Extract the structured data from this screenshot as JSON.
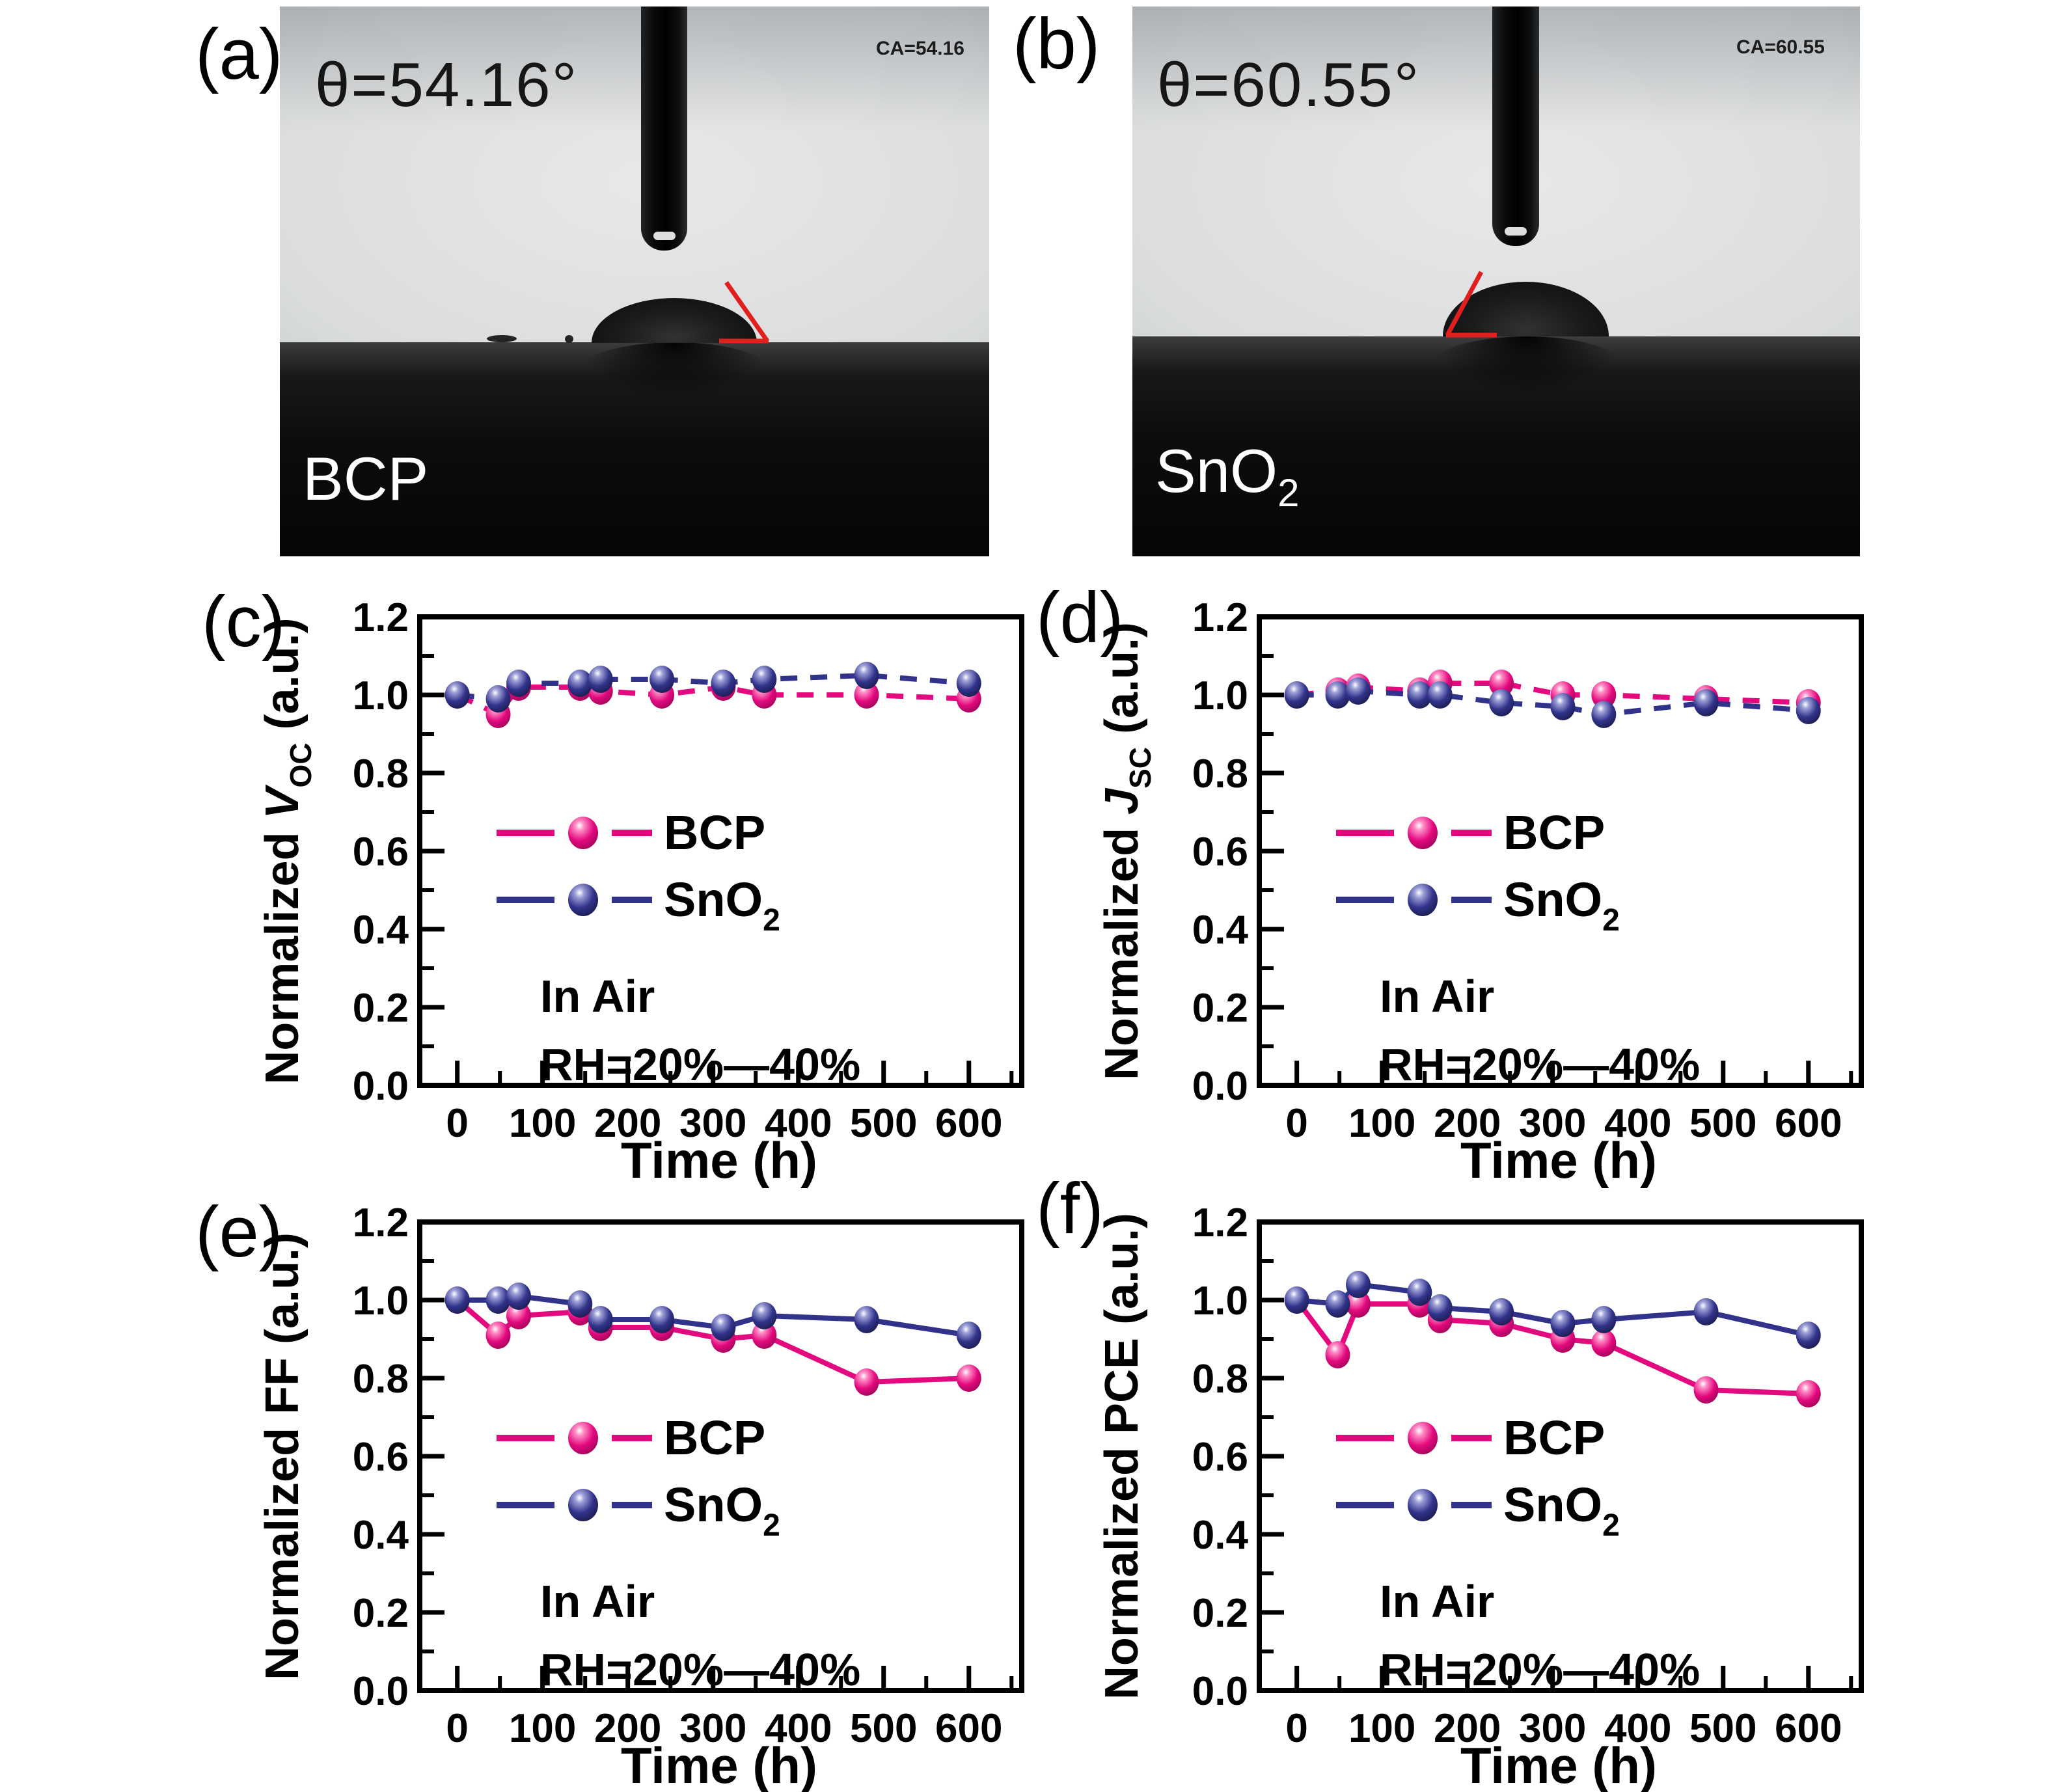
{
  "photos": {
    "a": {
      "panel_label": "(a)",
      "theta": "θ=54.16°",
      "ca": "CA=54.16",
      "sample": "BCP",
      "sample_sub": ""
    },
    "b": {
      "panel_label": "(b)",
      "theta": "θ=60.55°",
      "ca": "CA=60.55",
      "sample": "SnO",
      "sample_sub": "2"
    }
  },
  "chart_data": [
    {
      "type": "line",
      "panel_label": "(c)",
      "ylabel_parts": [
        {
          "t": "Normalized "
        },
        {
          "t": "V",
          "italic": true
        },
        {
          "t": "OC",
          "sub": true
        },
        {
          "t": " (a.u.)",
          "rise": true
        }
      ],
      "xlabel": "Time (h)",
      "x": [
        0,
        48,
        72,
        144,
        168,
        240,
        312,
        360,
        480,
        600
      ],
      "series": [
        {
          "name": "BCP",
          "label": "BCP",
          "label_sub": "",
          "color": "#e3097e",
          "light": "#ff8ac4",
          "dark": "#8f0350",
          "dashed": true,
          "values": [
            1.0,
            0.95,
            1.02,
            1.02,
            1.01,
            1.0,
            1.02,
            1.0,
            1.0,
            0.99
          ]
        },
        {
          "name": "SnO2",
          "label": "SnO",
          "label_sub": "2",
          "color": "#31338b",
          "light": "#9b9ed6",
          "dark": "#15163f",
          "dashed": true,
          "values": [
            1.0,
            0.99,
            1.03,
            1.03,
            1.04,
            1.04,
            1.03,
            1.04,
            1.05,
            1.03
          ]
        }
      ],
      "annotations": [
        "In Air",
        "RH=20%—40%"
      ],
      "xlim": [
        -44,
        662
      ],
      "ylim": [
        0,
        1.2
      ],
      "xticks": [
        0,
        100,
        200,
        300,
        400,
        500,
        600
      ],
      "yticks": [
        0,
        0.2,
        0.4,
        0.6,
        0.8,
        1.0,
        1.2
      ],
      "grid": false,
      "legend_position": "center"
    },
    {
      "type": "line",
      "panel_label": "(d)",
      "ylabel_parts": [
        {
          "t": "Normalized "
        },
        {
          "t": "J",
          "italic": true
        },
        {
          "t": "SC",
          "sub": true
        },
        {
          "t": " (a.u.)",
          "rise": true
        }
      ],
      "xlabel": "Time (h)",
      "x": [
        0,
        48,
        72,
        144,
        168,
        240,
        312,
        360,
        480,
        600
      ],
      "series": [
        {
          "name": "BCP",
          "label": "BCP",
          "label_sub": "",
          "color": "#e3097e",
          "light": "#ff8ac4",
          "dark": "#8f0350",
          "dashed": true,
          "values": [
            1.0,
            1.01,
            1.02,
            1.01,
            1.03,
            1.03,
            1.0,
            1.0,
            0.99,
            0.98
          ]
        },
        {
          "name": "SnO2",
          "label": "SnO",
          "label_sub": "2",
          "color": "#31338b",
          "light": "#9b9ed6",
          "dark": "#15163f",
          "dashed": true,
          "values": [
            1.0,
            1.0,
            1.01,
            1.0,
            1.0,
            0.98,
            0.97,
            0.95,
            0.98,
            0.96
          ]
        }
      ],
      "annotations": [
        "In Air",
        "RH=20%—40%"
      ],
      "xlim": [
        -44,
        662
      ],
      "ylim": [
        0,
        1.2
      ],
      "xticks": [
        0,
        100,
        200,
        300,
        400,
        500,
        600
      ],
      "yticks": [
        0,
        0.2,
        0.4,
        0.6,
        0.8,
        1.0,
        1.2
      ],
      "grid": false,
      "legend_position": "center"
    },
    {
      "type": "line",
      "panel_label": "(e)",
      "ylabel_parts": [
        {
          "t": "Normalized FF (a.u.)"
        }
      ],
      "xlabel": "Time (h)",
      "x": [
        0,
        48,
        72,
        144,
        168,
        240,
        312,
        360,
        480,
        600
      ],
      "series": [
        {
          "name": "BCP",
          "label": "BCP",
          "label_sub": "",
          "color": "#e3097e",
          "light": "#ff8ac4",
          "dark": "#8f0350",
          "dashed": false,
          "values": [
            1.0,
            0.91,
            0.96,
            0.97,
            0.93,
            0.93,
            0.9,
            0.91,
            0.79,
            0.8
          ]
        },
        {
          "name": "SnO2",
          "label": "SnO",
          "label_sub": "2",
          "color": "#31338b",
          "light": "#9b9ed6",
          "dark": "#15163f",
          "dashed": false,
          "values": [
            1.0,
            1.0,
            1.01,
            0.99,
            0.95,
            0.95,
            0.93,
            0.96,
            0.95,
            0.91
          ]
        }
      ],
      "annotations": [
        "In Air",
        "RH=20%—40%"
      ],
      "xlim": [
        -44,
        662
      ],
      "ylim": [
        0,
        1.2
      ],
      "xticks": [
        0,
        100,
        200,
        300,
        400,
        500,
        600
      ],
      "yticks": [
        0,
        0.2,
        0.4,
        0.6,
        0.8,
        1.0,
        1.2
      ],
      "grid": false,
      "legend_position": "center"
    },
    {
      "type": "line",
      "panel_label": "(f)",
      "ylabel_parts": [
        {
          "t": "Normalized PCE (a.u.)"
        }
      ],
      "xlabel": "Time (h)",
      "x": [
        0,
        48,
        72,
        144,
        168,
        240,
        312,
        360,
        480,
        600
      ],
      "series": [
        {
          "name": "BCP",
          "label": "BCP",
          "label_sub": "",
          "color": "#e3097e",
          "light": "#ff8ac4",
          "dark": "#8f0350",
          "dashed": false,
          "values": [
            1.0,
            0.86,
            0.99,
            0.99,
            0.95,
            0.94,
            0.9,
            0.89,
            0.77,
            0.76
          ]
        },
        {
          "name": "SnO2",
          "label": "SnO",
          "label_sub": "2",
          "color": "#31338b",
          "light": "#9b9ed6",
          "dark": "#15163f",
          "dashed": false,
          "values": [
            1.0,
            0.99,
            1.04,
            1.02,
            0.98,
            0.97,
            0.94,
            0.95,
            0.97,
            0.91
          ]
        }
      ],
      "annotations": [
        "In Air",
        "RH=20%—40%"
      ],
      "xlim": [
        -44,
        662
      ],
      "ylim": [
        0,
        1.2
      ],
      "xticks": [
        0,
        100,
        200,
        300,
        400,
        500,
        600
      ],
      "yticks": [
        0,
        0.2,
        0.4,
        0.6,
        0.8,
        1.0,
        1.2
      ],
      "grid": false,
      "legend_position": "center"
    }
  ]
}
